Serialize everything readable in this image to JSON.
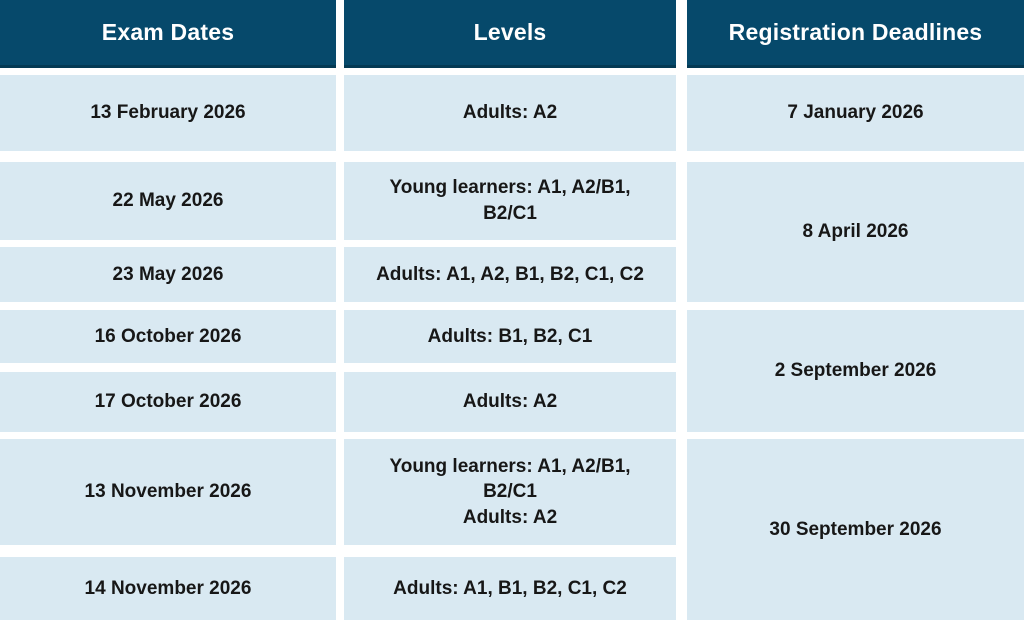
{
  "colors": {
    "header_bg": "#06496B",
    "header_border": "#043A54",
    "cell_bg": "#D9E9F2",
    "header_text": "#FFFFFF",
    "body_text": "#171717",
    "gap": "#FFFFFF"
  },
  "table": {
    "headers": [
      "Exam Dates",
      "Levels",
      "Registration Deadlines"
    ],
    "rows": [
      {
        "date": "13 February 2026",
        "levels": [
          "Adults: A2"
        ]
      },
      {
        "date": "22 May 2026",
        "levels": [
          "Young learners: A1, A2/B1, B2/C1"
        ]
      },
      {
        "date": "23 May 2026",
        "levels": [
          "Adults: A1, A2, B1, B2, C1, C2"
        ]
      },
      {
        "date": "16 October 2026",
        "levels": [
          "Adults: B1, B2, C1"
        ]
      },
      {
        "date": "17 October 2026",
        "levels": [
          "Adults: A2"
        ]
      },
      {
        "date": "13 November 2026",
        "levels": [
          "Young learners: A1, A2/B1, B2/C1",
          "Adults: A2"
        ]
      },
      {
        "date": "14 November 2026",
        "levels": [
          "Adults: A1, B1, B2, C1, C2"
        ]
      }
    ],
    "deadlines": [
      "7 January 2026",
      "8 April 2026",
      "2 September 2026",
      "30 September 2026"
    ]
  },
  "chart_data": {
    "type": "table",
    "title": "",
    "columns": [
      "Exam Dates",
      "Levels",
      "Registration Deadlines"
    ],
    "rows": [
      [
        "13 February 2026",
        "Adults: A2",
        "7 January 2026"
      ],
      [
        "22 May 2026",
        "Young learners: A1, A2/B1, B2/C1",
        "8 April 2026"
      ],
      [
        "23 May 2026",
        "Adults: A1, A2, B1, B2, C1, C2",
        "8 April 2026"
      ],
      [
        "16 October 2026",
        "Adults: B1, B2, C1",
        "2 September 2026"
      ],
      [
        "17 October 2026",
        "Adults: A2",
        "2 September 2026"
      ],
      [
        "13 November 2026",
        "Young learners: A1, A2/B1, B2/C1 / Adults: A2",
        "30 September 2026"
      ],
      [
        "14 November 2026",
        "Adults: A1, B1, B2, C1, C2",
        "30 September 2026"
      ]
    ],
    "layout_hints": {
      "merged_cells_column": "Registration Deadlines",
      "merges": [
        {
          "value": "8 April 2026",
          "covers_rows": [
            2,
            3
          ]
        },
        {
          "value": "2 September 2026",
          "covers_rows": [
            4,
            5
          ]
        },
        {
          "value": "30 September 2026",
          "covers_rows": [
            6,
            7
          ]
        }
      ]
    }
  }
}
